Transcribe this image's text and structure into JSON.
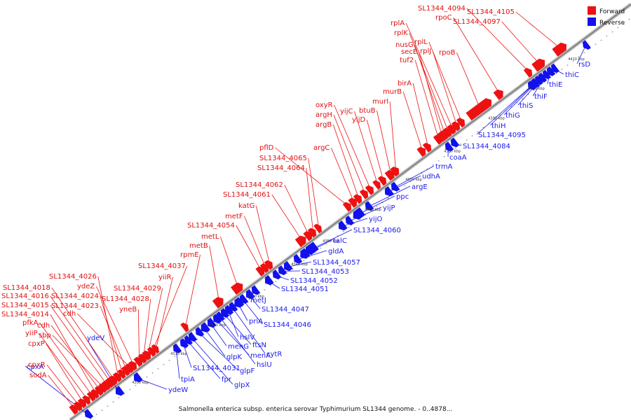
{
  "legend": {
    "forward_label": "Forward",
    "reverse_label": "Reverse",
    "forward_color": "#ee1111",
    "reverse_color": "#1111ee"
  },
  "caption": "Salmonella enterica subsp. enterica serovar Typhimurium SL1344 genome. - 0..4878...",
  "scale_ticks": [
    "4300 kbp",
    "4310 kbp",
    "4320 kbp",
    "4330 kbp",
    "4340 kbp",
    "4350 kbp",
    "4360 kbp",
    "4370 kbp",
    "4380 kbp",
    "4390 kbp",
    "4400 kbp",
    "4410 kbp"
  ],
  "forward_genes": [
    "sodA",
    "cpxR",
    "cpxP",
    "yiiP",
    "pfkA",
    "SL1344_4014",
    "cdh",
    "sbp",
    "SL1344_4015",
    "SL1344_4016",
    "SL1344_4018",
    "SL1344_4026",
    "SL1344_4024",
    "SL1344_4023",
    "cdh",
    "ydeZ",
    "yneB",
    "SL1344_4028",
    "SL1344_4029",
    "SL1344_4037",
    "yiiR",
    "rpmE",
    "metB",
    "metL",
    "SL1344_4054",
    "metF",
    "katG",
    "SL1344_4061",
    "SL1344_4062",
    "SL1344_4064",
    "SL1344_4065",
    "pflD",
    "argC",
    "argB",
    "argH",
    "oxyR",
    "yijC",
    "yijD",
    "btuB",
    "murI",
    "murB",
    "birA",
    "tuf2",
    "secE",
    "nusG",
    "rplK",
    "rplA",
    "rplJ",
    "rplL",
    "rpoB",
    "rpoC",
    "SL1344_4094",
    "SL1344_4097",
    "SL1344_4105"
  ],
  "reverse_genes": [
    "cpxA",
    "ydeV",
    "ydeW",
    "tpiA",
    "SL1344_4031",
    "fpr",
    "glpX",
    "glpF",
    "glpK",
    "menG",
    "menA",
    "hslU",
    "ftsN",
    "hslV",
    "cytR",
    "priA",
    "SL1344_4046",
    "SL1344_4047",
    "metJ",
    "SL1344_4051",
    "SL1344_4052",
    "SL1344_4053",
    "SL1344_4057",
    "gldA",
    "talC",
    "SL1344_4060",
    "yijO",
    "yijP",
    "ppc",
    "argE",
    "udhA",
    "trmA",
    "coaA",
    "SL1344_4084",
    "SL1344_4095",
    "thiH",
    "thiG",
    "thiS",
    "thiF",
    "thiE",
    "thiC",
    "rsD"
  ]
}
